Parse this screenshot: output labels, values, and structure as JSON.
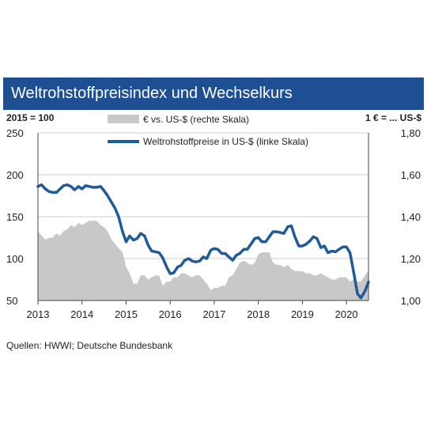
{
  "header": {
    "title": "Weltrohstoffpreisindex und Wechselkurs"
  },
  "source": "Quellen: HWWI; Deutsche Bundesbank",
  "chart_data": {
    "type": "area",
    "left_axis_note": "2015 = 100",
    "right_axis_note": "1 € = ... US-$",
    "x": {
      "range": [
        2013.0,
        2020.5
      ],
      "ticks": [
        2013,
        2014,
        2015,
        2016,
        2017,
        2018,
        2019,
        2020
      ],
      "tick_labels": [
        "2013",
        "2014",
        "2015",
        "2016",
        "2017",
        "2018",
        "2019",
        "2020"
      ]
    },
    "y_left": {
      "range": [
        50,
        250
      ],
      "ticks": [
        50,
        100,
        150,
        200,
        250
      ],
      "tick_labels": [
        "50",
        "100",
        "150",
        "200",
        "250"
      ]
    },
    "y_right": {
      "range": [
        1.0,
        1.8
      ],
      "ticks": [
        1.0,
        1.2,
        1.4,
        1.6,
        1.8
      ],
      "tick_labels": [
        "1,00",
        "1,20",
        "1,40",
        "1,60",
        "1,80"
      ]
    },
    "grid": true,
    "legend_position": "top",
    "series": [
      {
        "name": "€ vs. US-$ (rechte Skala)",
        "kind": "area",
        "axis": "right",
        "color": "#c8c8c8",
        "points": [
          [
            2013.0,
            1.33
          ],
          [
            2013.08,
            1.31
          ],
          [
            2013.17,
            1.29
          ],
          [
            2013.25,
            1.3
          ],
          [
            2013.33,
            1.3
          ],
          [
            2013.42,
            1.32
          ],
          [
            2013.5,
            1.31
          ],
          [
            2013.58,
            1.33
          ],
          [
            2013.67,
            1.34
          ],
          [
            2013.75,
            1.36
          ],
          [
            2013.83,
            1.35
          ],
          [
            2013.92,
            1.37
          ],
          [
            2014.0,
            1.36
          ],
          [
            2014.08,
            1.37
          ],
          [
            2014.17,
            1.38
          ],
          [
            2014.25,
            1.38
          ],
          [
            2014.33,
            1.38
          ],
          [
            2014.42,
            1.36
          ],
          [
            2014.5,
            1.35
          ],
          [
            2014.58,
            1.33
          ],
          [
            2014.67,
            1.29
          ],
          [
            2014.75,
            1.27
          ],
          [
            2014.83,
            1.25
          ],
          [
            2014.92,
            1.23
          ],
          [
            2015.0,
            1.16
          ],
          [
            2015.08,
            1.13
          ],
          [
            2015.17,
            1.08
          ],
          [
            2015.25,
            1.08
          ],
          [
            2015.33,
            1.12
          ],
          [
            2015.42,
            1.12
          ],
          [
            2015.5,
            1.1
          ],
          [
            2015.58,
            1.11
          ],
          [
            2015.67,
            1.12
          ],
          [
            2015.75,
            1.12
          ],
          [
            2015.83,
            1.07
          ],
          [
            2015.92,
            1.09
          ],
          [
            2016.0,
            1.09
          ],
          [
            2016.08,
            1.11
          ],
          [
            2016.17,
            1.11
          ],
          [
            2016.25,
            1.13
          ],
          [
            2016.33,
            1.13
          ],
          [
            2016.42,
            1.12
          ],
          [
            2016.5,
            1.11
          ],
          [
            2016.58,
            1.12
          ],
          [
            2016.67,
            1.12
          ],
          [
            2016.75,
            1.1
          ],
          [
            2016.83,
            1.08
          ],
          [
            2016.92,
            1.05
          ],
          [
            2017.0,
            1.06
          ],
          [
            2017.08,
            1.06
          ],
          [
            2017.17,
            1.07
          ],
          [
            2017.25,
            1.07
          ],
          [
            2017.33,
            1.11
          ],
          [
            2017.42,
            1.12
          ],
          [
            2017.5,
            1.15
          ],
          [
            2017.58,
            1.18
          ],
          [
            2017.67,
            1.19
          ],
          [
            2017.75,
            1.18
          ],
          [
            2017.83,
            1.17
          ],
          [
            2017.92,
            1.18
          ],
          [
            2018.0,
            1.22
          ],
          [
            2018.08,
            1.23
          ],
          [
            2018.17,
            1.23
          ],
          [
            2018.25,
            1.23
          ],
          [
            2018.33,
            1.18
          ],
          [
            2018.42,
            1.17
          ],
          [
            2018.5,
            1.17
          ],
          [
            2018.58,
            1.16
          ],
          [
            2018.67,
            1.17
          ],
          [
            2018.75,
            1.15
          ],
          [
            2018.83,
            1.14
          ],
          [
            2018.92,
            1.14
          ],
          [
            2019.0,
            1.14
          ],
          [
            2019.08,
            1.13
          ],
          [
            2019.17,
            1.13
          ],
          [
            2019.25,
            1.12
          ],
          [
            2019.33,
            1.12
          ],
          [
            2019.42,
            1.13
          ],
          [
            2019.5,
            1.12
          ],
          [
            2019.58,
            1.11
          ],
          [
            2019.67,
            1.1
          ],
          [
            2019.75,
            1.1
          ],
          [
            2019.83,
            1.11
          ],
          [
            2019.92,
            1.11
          ],
          [
            2020.0,
            1.11
          ],
          [
            2020.08,
            1.09
          ],
          [
            2020.17,
            1.1
          ],
          [
            2020.25,
            1.09
          ],
          [
            2020.33,
            1.09
          ],
          [
            2020.42,
            1.12
          ],
          [
            2020.5,
            1.14
          ]
        ]
      },
      {
        "name": "Weltrohstoffpreise in US-$ (linke Skala)",
        "kind": "line",
        "axis": "left",
        "color": "#1f5a99",
        "points": [
          [
            2013.0,
            186
          ],
          [
            2013.08,
            188
          ],
          [
            2013.17,
            183
          ],
          [
            2013.25,
            180
          ],
          [
            2013.33,
            179
          ],
          [
            2013.42,
            179
          ],
          [
            2013.5,
            183
          ],
          [
            2013.58,
            187
          ],
          [
            2013.67,
            188
          ],
          [
            2013.75,
            186
          ],
          [
            2013.83,
            182
          ],
          [
            2013.92,
            186
          ],
          [
            2014.0,
            183
          ],
          [
            2014.08,
            187
          ],
          [
            2014.17,
            186
          ],
          [
            2014.25,
            185
          ],
          [
            2014.33,
            185
          ],
          [
            2014.42,
            186
          ],
          [
            2014.5,
            181
          ],
          [
            2014.58,
            175
          ],
          [
            2014.67,
            167
          ],
          [
            2014.75,
            160
          ],
          [
            2014.83,
            150
          ],
          [
            2014.92,
            132
          ],
          [
            2015.0,
            120
          ],
          [
            2015.08,
            127
          ],
          [
            2015.17,
            122
          ],
          [
            2015.25,
            124
          ],
          [
            2015.33,
            130
          ],
          [
            2015.42,
            127
          ],
          [
            2015.5,
            116
          ],
          [
            2015.58,
            109
          ],
          [
            2015.67,
            108
          ],
          [
            2015.75,
            107
          ],
          [
            2015.83,
            101
          ],
          [
            2015.92,
            90
          ],
          [
            2016.0,
            82
          ],
          [
            2016.08,
            83
          ],
          [
            2016.17,
            90
          ],
          [
            2016.25,
            92
          ],
          [
            2016.33,
            98
          ],
          [
            2016.42,
            100
          ],
          [
            2016.5,
            97
          ],
          [
            2016.58,
            96
          ],
          [
            2016.67,
            97
          ],
          [
            2016.75,
            102
          ],
          [
            2016.83,
            100
          ],
          [
            2016.92,
            110
          ],
          [
            2017.0,
            112
          ],
          [
            2017.08,
            111
          ],
          [
            2017.17,
            106
          ],
          [
            2017.25,
            106
          ],
          [
            2017.33,
            102
          ],
          [
            2017.42,
            98
          ],
          [
            2017.5,
            104
          ],
          [
            2017.58,
            106
          ],
          [
            2017.67,
            111
          ],
          [
            2017.75,
            111
          ],
          [
            2017.83,
            117
          ],
          [
            2017.92,
            124
          ],
          [
            2018.0,
            125
          ],
          [
            2018.08,
            120
          ],
          [
            2018.17,
            120
          ],
          [
            2018.25,
            126
          ],
          [
            2018.33,
            132
          ],
          [
            2018.42,
            132
          ],
          [
            2018.5,
            131
          ],
          [
            2018.58,
            130
          ],
          [
            2018.67,
            138
          ],
          [
            2018.75,
            139
          ],
          [
            2018.83,
            126
          ],
          [
            2018.92,
            115
          ],
          [
            2019.0,
            115
          ],
          [
            2019.08,
            117
          ],
          [
            2019.17,
            121
          ],
          [
            2019.25,
            126
          ],
          [
            2019.33,
            124
          ],
          [
            2019.42,
            113
          ],
          [
            2019.5,
            115
          ],
          [
            2019.58,
            107
          ],
          [
            2019.67,
            109
          ],
          [
            2019.75,
            108
          ],
          [
            2019.83,
            111
          ],
          [
            2019.92,
            114
          ],
          [
            2020.0,
            114
          ],
          [
            2020.08,
            107
          ],
          [
            2020.17,
            82
          ],
          [
            2020.25,
            58
          ],
          [
            2020.33,
            53
          ],
          [
            2020.42,
            61
          ],
          [
            2020.5,
            72
          ]
        ]
      }
    ]
  }
}
